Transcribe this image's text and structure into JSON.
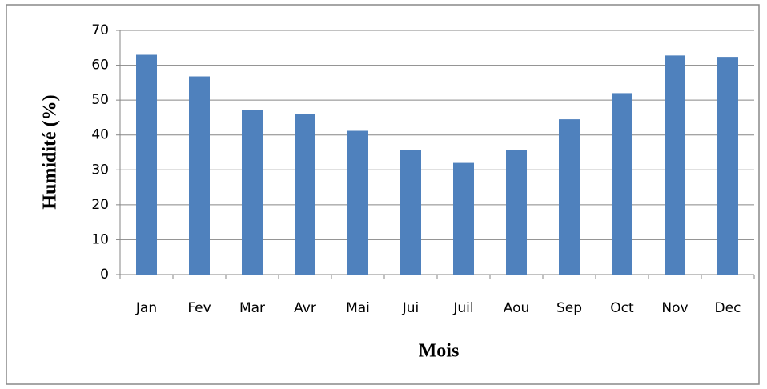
{
  "chart_data": {
    "type": "bar",
    "x_label": "Mois",
    "y_label": "Humidité (%)",
    "categories": [
      "Jan",
      "Fev",
      "Mar",
      "Avr",
      "Mai",
      "Jui",
      "Juil",
      "Aou",
      "Sep",
      "Oct",
      "Nov",
      "Dec"
    ],
    "values": [
      63,
      56.8,
      47.2,
      46,
      41.2,
      35.6,
      32,
      35.6,
      44.5,
      52,
      62.8,
      62.4
    ],
    "color": "#4f81bd",
    "ylim": [
      0,
      70
    ],
    "yticks": [
      0,
      10,
      20,
      30,
      40,
      50,
      60,
      70
    ],
    "grid": true
  }
}
